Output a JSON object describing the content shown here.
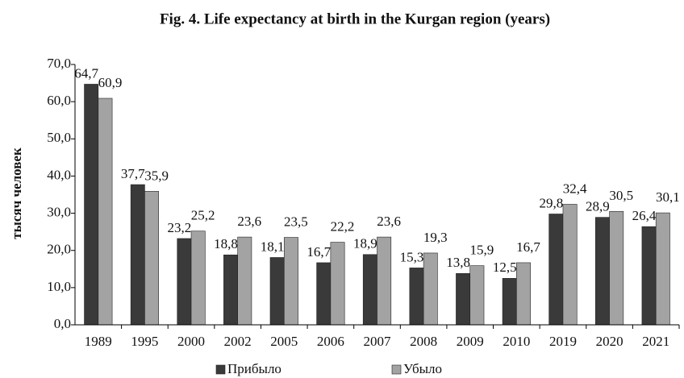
{
  "chart_data": {
    "type": "bar",
    "title": "Fig. 4. Life expectancy at birth in the Kurgan region (years)",
    "y_label": "тысяч человек",
    "categories": [
      "1989",
      "1995",
      "2000",
      "2002",
      "2005",
      "2006",
      "2007",
      "2008",
      "2009",
      "2010",
      "2019",
      "2020",
      "2021"
    ],
    "series": [
      {
        "name": "Прибыло",
        "color": "#3a3a3a",
        "values": [
          64.7,
          37.7,
          23.2,
          18.8,
          18.1,
          16.7,
          18.9,
          15.3,
          13.8,
          12.5,
          29.8,
          28.9,
          26.4
        ],
        "value_labels": [
          "64,7",
          "37,7",
          "23,2",
          "18,8",
          "18,1",
          "16,7",
          "18,9",
          "15,3",
          "13,8",
          "12,5",
          "29,8",
          "28,9",
          "26,4"
        ]
      },
      {
        "name": "Убыло",
        "color": "#a3a3a3",
        "values": [
          60.9,
          35.9,
          25.2,
          23.6,
          23.5,
          22.2,
          23.6,
          19.3,
          15.9,
          16.7,
          32.4,
          30.5,
          30.1
        ],
        "value_labels": [
          "60,9",
          "35,9",
          "25,2",
          "23,6",
          "23,5",
          "22,2",
          "23,6",
          "19,3",
          "15,9",
          "16,7",
          "32,4",
          "30,5",
          "30,1"
        ]
      }
    ],
    "ylim": [
      0,
      70
    ],
    "yticks": [
      {
        "value": 0,
        "label": "0,0"
      },
      {
        "value": 10,
        "label": "10,0"
      },
      {
        "value": 20,
        "label": "20,0"
      },
      {
        "value": 30,
        "label": "30,0"
      },
      {
        "value": 40,
        "label": "40,0"
      },
      {
        "value": 50,
        "label": "50,0"
      },
      {
        "value": 60,
        "label": "60,0"
      },
      {
        "value": 70,
        "label": "70,0"
      }
    ],
    "legend": "bottom"
  }
}
